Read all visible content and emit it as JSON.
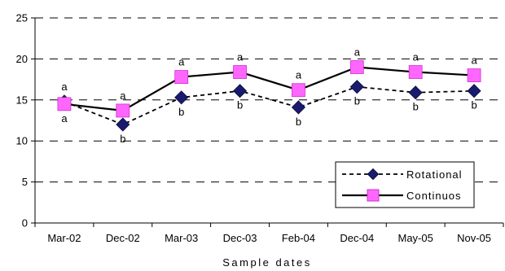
{
  "chart_data": {
    "type": "line",
    "categories": [
      "Mar-02",
      "Dec-02",
      "Mar-03",
      "Dec-03",
      "Feb-04",
      "Dec-04",
      "May-05",
      "Nov-05"
    ],
    "series": [
      {
        "name": "Rotational",
        "values": [
          14.8,
          12.0,
          15.3,
          16.1,
          14.1,
          16.6,
          15.9,
          16.1
        ],
        "letters": [
          "a",
          "b",
          "b",
          "b",
          "b",
          "b",
          "b",
          "b"
        ],
        "line_style": "dashed",
        "marker": "diamond",
        "color": "#1a1a6e"
      },
      {
        "name": "Continuos",
        "values": [
          14.5,
          13.7,
          17.8,
          18.4,
          16.2,
          19.0,
          18.4,
          18.0
        ],
        "letters": [
          "a",
          "a",
          "a",
          "a",
          "a",
          "a",
          "a",
          "a"
        ],
        "line_style": "solid",
        "marker": "square",
        "color": "#ff66ff"
      }
    ],
    "xlabel": "Sample dates",
    "ylabel": "",
    "ylim": [
      0,
      25
    ],
    "yticks": [
      0,
      5,
      10,
      15,
      20,
      25
    ],
    "grid": "horizontal-dashed",
    "legend": "bottom-right"
  }
}
